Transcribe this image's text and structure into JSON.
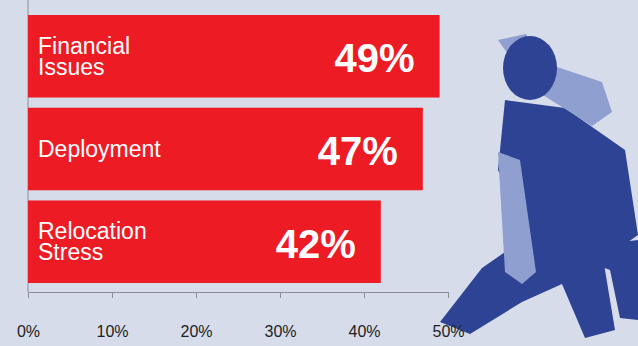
{
  "chart_data": {
    "type": "bar",
    "orientation": "horizontal",
    "categories": [
      "Financial Issues",
      "Deployment",
      "Relocation Stress"
    ],
    "values": [
      49,
      47,
      42
    ],
    "value_labels": [
      "49%",
      "47%",
      "42%"
    ],
    "data_labels": true,
    "color": "#ed1c24",
    "xlim": [
      0,
      50
    ],
    "xticks": [
      {
        "value": 0,
        "label": "0%"
      },
      {
        "value": 10,
        "label": "10%"
      },
      {
        "value": 20,
        "label": "20%"
      },
      {
        "value": 30,
        "label": "30%"
      },
      {
        "value": 40,
        "label": "40%"
      },
      {
        "value": 50,
        "label": "50%"
      }
    ],
    "grid": false
  }
}
